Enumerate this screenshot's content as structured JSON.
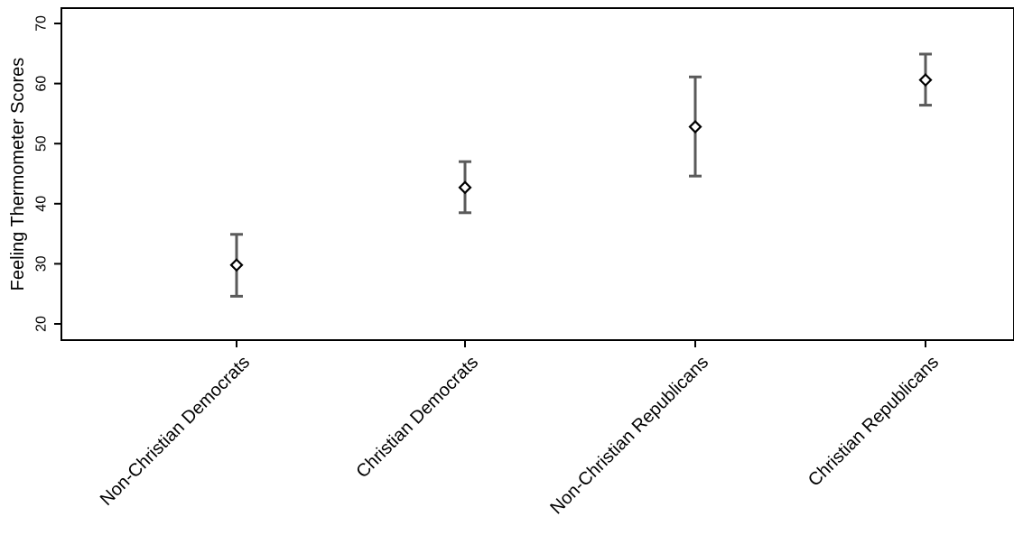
{
  "chart_data": {
    "type": "scatter",
    "title": "",
    "ylabel": "Feeling Thermometer Scores",
    "xlabel": "",
    "ylim": [
      18,
      72
    ],
    "yticks": [
      20,
      30,
      40,
      50,
      60,
      70
    ],
    "grid": false,
    "categories": [
      "Non-Christian Democrats",
      "Christian Democrats",
      "Non-Christian Republicans",
      "Christian Republicans"
    ],
    "series": [
      {
        "estimates": [
          29.8,
          42.7,
          52.8,
          60.6
        ],
        "ci_lower": [
          24.6,
          38.5,
          44.6,
          56.4
        ],
        "ci_upper": [
          34.9,
          47.0,
          61.1,
          64.9
        ]
      }
    ]
  }
}
